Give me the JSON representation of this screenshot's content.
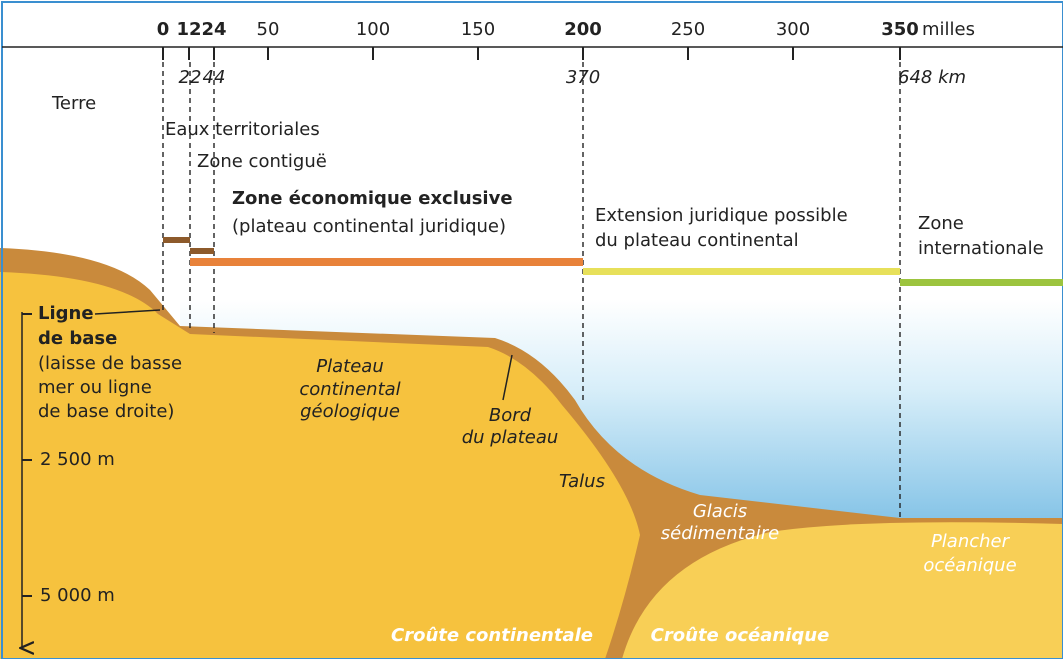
{
  "axis": {
    "miles": [
      "0",
      "12",
      "24",
      "50",
      "100",
      "150",
      "200",
      "250",
      "300",
      "350"
    ],
    "miles_unit": "milles",
    "km": [
      "22",
      "44",
      "370",
      "648 km"
    ]
  },
  "zones": {
    "land": "Terre",
    "territorial": "Eaux territoriales",
    "contiguous": "Zone contiguë",
    "eez": [
      "Zone économique exclusive",
      "(plateau continental juridique)"
    ],
    "extension": [
      "Extension juridique possible",
      "du plateau continental"
    ],
    "international": [
      "Zone",
      "internationale"
    ]
  },
  "baseline": [
    "Ligne",
    "de base",
    "(laisse de basse",
    "mer ou ligne",
    "de base droite)"
  ],
  "depths": [
    "2 500 m",
    "5 000 m"
  ],
  "relief": {
    "shelf": [
      "Plateau",
      "continental",
      "géologique"
    ],
    "shelf_edge": [
      "Bord",
      "du plateau"
    ],
    "slope": "Talus",
    "rise": [
      "Glacis",
      "sédimentaire"
    ],
    "floor": [
      "Plancher",
      "océanique"
    ],
    "continental_crust": "Croûte continentale",
    "oceanic_crust": "Croûte océanique"
  }
}
